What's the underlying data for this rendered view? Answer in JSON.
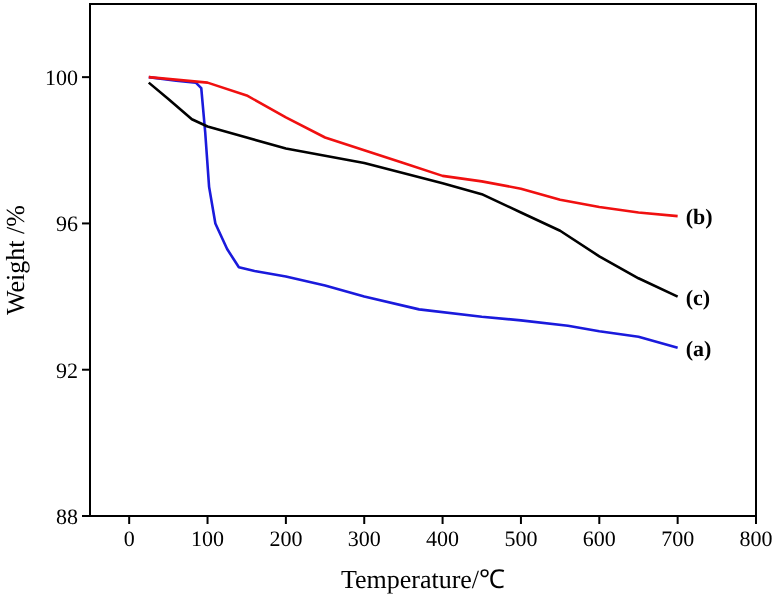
{
  "chart_data": {
    "type": "line",
    "xlabel": "Temperature/℃",
    "ylabel": "Weight /%",
    "xlim": [
      -50,
      800
    ],
    "ylim": [
      88,
      102
    ],
    "xticks": [
      0,
      100,
      200,
      300,
      400,
      500,
      600,
      700,
      800
    ],
    "yticks": [
      88,
      92,
      96,
      100
    ],
    "marker": "none",
    "line_style": "solid",
    "series": [
      {
        "name": "(a)",
        "color": "#1a1adc",
        "x": [
          25,
          60,
          85,
          92,
          97,
          102,
          110,
          125,
          140,
          160,
          200,
          250,
          300,
          370,
          450,
          500,
          560,
          600,
          650,
          700
        ],
        "values": [
          100,
          99.9,
          99.85,
          99.7,
          98.5,
          97,
          96,
          95.3,
          94.8,
          94.7,
          94.55,
          94.3,
          94.0,
          93.65,
          93.45,
          93.35,
          93.2,
          93.05,
          92.9,
          92.6
        ]
      },
      {
        "name": "(b)",
        "color": "#f01010",
        "x": [
          25,
          100,
          150,
          200,
          250,
          300,
          350,
          400,
          450,
          500,
          550,
          600,
          650,
          700
        ],
        "values": [
          100,
          99.85,
          99.5,
          98.9,
          98.35,
          98.0,
          97.65,
          97.3,
          97.15,
          96.95,
          96.65,
          96.45,
          96.3,
          96.2
        ]
      },
      {
        "name": "(c)",
        "color": "#000000",
        "x": [
          25,
          50,
          80,
          100,
          150,
          200,
          300,
          400,
          450,
          500,
          550,
          600,
          650,
          700
        ],
        "values": [
          99.85,
          99.4,
          98.85,
          98.65,
          98.35,
          98.05,
          97.65,
          97.1,
          96.8,
          96.3,
          95.8,
          95.1,
          94.5,
          94.0
        ]
      }
    ]
  }
}
